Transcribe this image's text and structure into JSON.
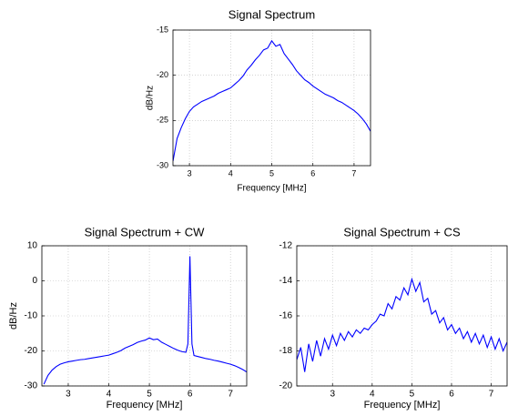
{
  "chart_data": [
    {
      "type": "line",
      "title": "Signal Spectrum",
      "xlabel": "Frequency [MHz]",
      "ylabel": "dB/Hz",
      "color": "#0000ff",
      "grid": true,
      "xlim": [
        2.6,
        7.4
      ],
      "xticks": [
        3,
        4,
        5,
        6,
        7
      ],
      "ylim": [
        -30,
        -15
      ],
      "yticks": [
        -30,
        -25,
        -20,
        -15
      ],
      "x": [
        2.6,
        2.7,
        2.8,
        2.9,
        3.0,
        3.1,
        3.2,
        3.3,
        3.4,
        3.5,
        3.6,
        3.7,
        3.8,
        3.9,
        4.0,
        4.1,
        4.2,
        4.3,
        4.4,
        4.5,
        4.6,
        4.7,
        4.8,
        4.9,
        5.0,
        5.1,
        5.2,
        5.3,
        5.4,
        5.5,
        5.6,
        5.7,
        5.8,
        5.9,
        6.0,
        6.1,
        6.2,
        6.3,
        6.4,
        6.5,
        6.6,
        6.7,
        6.8,
        6.9,
        7.0,
        7.1,
        7.2,
        7.3,
        7.4
      ],
      "values": [
        -29.5,
        -27,
        -25.8,
        -24.8,
        -24,
        -23.5,
        -23.2,
        -22.9,
        -22.7,
        -22.5,
        -22.3,
        -22.0,
        -21.8,
        -21.6,
        -21.4,
        -21.0,
        -20.6,
        -20.1,
        -19.4,
        -18.9,
        -18.3,
        -17.8,
        -17.2,
        -17.0,
        -16.2,
        -16.8,
        -16.6,
        -17.6,
        -18.2,
        -18.8,
        -19.5,
        -20.0,
        -20.5,
        -20.8,
        -21.2,
        -21.5,
        -21.8,
        -22.1,
        -22.3,
        -22.5,
        -22.8,
        -23.0,
        -23.3,
        -23.6,
        -23.9,
        -24.3,
        -24.8,
        -25.4,
        -26.2
      ]
    },
    {
      "type": "line",
      "title": "Signal Spectrum + CW",
      "xlabel": "Frequency [MHz]",
      "ylabel": "dB/Hz",
      "color": "#0000ff",
      "grid": true,
      "xlim": [
        2.35,
        7.4
      ],
      "xticks": [
        3,
        4,
        5,
        6,
        7
      ],
      "ylim": [
        -30,
        10
      ],
      "yticks": [
        -30,
        -20,
        -10,
        0,
        10
      ],
      "x": [
        2.4,
        2.5,
        2.6,
        2.7,
        2.8,
        2.9,
        3.0,
        3.1,
        3.2,
        3.3,
        3.4,
        3.5,
        3.6,
        3.7,
        3.8,
        3.9,
        4.0,
        4.1,
        4.2,
        4.3,
        4.4,
        4.5,
        4.6,
        4.7,
        4.8,
        4.9,
        5.0,
        5.1,
        5.2,
        5.3,
        5.4,
        5.5,
        5.6,
        5.7,
        5.8,
        5.9,
        5.95,
        6.0,
        6.05,
        6.1,
        6.2,
        6.3,
        6.4,
        6.5,
        6.6,
        6.7,
        6.8,
        6.9,
        7.0,
        7.1,
        7.2,
        7.3,
        7.4
      ],
      "values": [
        -29.5,
        -27,
        -25.5,
        -24.5,
        -23.8,
        -23.4,
        -23.1,
        -22.9,
        -22.7,
        -22.5,
        -22.4,
        -22.2,
        -22.0,
        -21.8,
        -21.6,
        -21.4,
        -21.2,
        -20.8,
        -20.4,
        -19.9,
        -19.2,
        -18.7,
        -18.2,
        -17.6,
        -17.2,
        -16.9,
        -16.3,
        -16.8,
        -16.6,
        -17.5,
        -18.1,
        -18.7,
        -19.3,
        -19.8,
        -20.2,
        -20.4,
        -18,
        7,
        -18,
        -21.3,
        -21.6,
        -21.9,
        -22.2,
        -22.4,
        -22.7,
        -22.9,
        -23.2,
        -23.5,
        -23.8,
        -24.2,
        -24.7,
        -25.3,
        -26.0
      ]
    },
    {
      "type": "line",
      "title": "Signal Spectrum + CS",
      "xlabel": "Frequency [MHz]",
      "color": "#0000ff",
      "grid": true,
      "xlim": [
        2.1,
        7.4
      ],
      "xticks": [
        3,
        4,
        5,
        6,
        7
      ],
      "ylim": [
        -20,
        -12
      ],
      "yticks": [
        -20,
        -18,
        -16,
        -14,
        -12
      ],
      "x": [
        2.1,
        2.2,
        2.3,
        2.4,
        2.5,
        2.6,
        2.7,
        2.8,
        2.9,
        3.0,
        3.1,
        3.2,
        3.3,
        3.4,
        3.5,
        3.6,
        3.7,
        3.8,
        3.9,
        4.0,
        4.1,
        4.2,
        4.3,
        4.4,
        4.5,
        4.6,
        4.7,
        4.8,
        4.9,
        5.0,
        5.1,
        5.2,
        5.3,
        5.4,
        5.5,
        5.6,
        5.7,
        5.8,
        5.9,
        6.0,
        6.1,
        6.2,
        6.3,
        6.4,
        6.5,
        6.6,
        6.7,
        6.8,
        6.9,
        7.0,
        7.1,
        7.2,
        7.3,
        7.4
      ],
      "values": [
        -18.5,
        -17.8,
        -19.2,
        -17.6,
        -18.6,
        -17.4,
        -18.3,
        -17.3,
        -17.9,
        -17.1,
        -17.7,
        -17.0,
        -17.4,
        -16.9,
        -17.2,
        -16.8,
        -17.0,
        -16.7,
        -16.8,
        -16.5,
        -16.3,
        -15.9,
        -16.0,
        -15.3,
        -15.6,
        -14.9,
        -15.1,
        -14.4,
        -14.8,
        -13.9,
        -14.6,
        -14.1,
        -15.2,
        -15.0,
        -15.9,
        -15.7,
        -16.4,
        -16.1,
        -16.8,
        -16.5,
        -17.0,
        -16.7,
        -17.3,
        -16.9,
        -17.5,
        -17.0,
        -17.6,
        -17.1,
        -17.8,
        -17.2,
        -17.9,
        -17.3,
        -18.0,
        -17.5
      ]
    }
  ]
}
